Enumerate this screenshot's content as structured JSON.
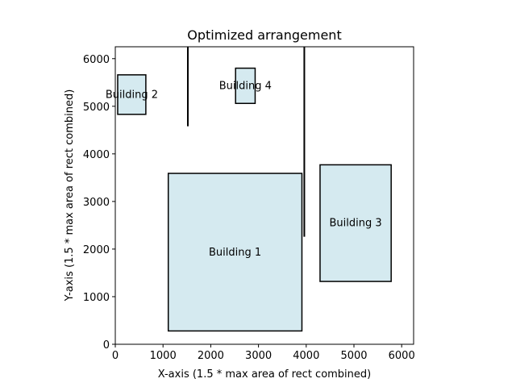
{
  "chart_data": {
    "type": "rectangles",
    "title": "Optimized arrangement",
    "xlabel": "X-axis (1.5 * max area of rect combined)",
    "ylabel": "Y-axis (1.5 * max area of rect combined)",
    "xlim": [
      0,
      6250
    ],
    "ylim": [
      0,
      6250
    ],
    "xticks": [
      0,
      1000,
      2000,
      3000,
      4000,
      5000,
      6000
    ],
    "yticks": [
      0,
      1000,
      2000,
      3000,
      4000,
      5000,
      6000
    ],
    "grid": false,
    "fill_color": "#d5eaf0",
    "edge_color": "#000000",
    "buildings": [
      {
        "label": "Building 1",
        "x0": 1110,
        "y0": 280,
        "x1": 3910,
        "y1": 3590
      },
      {
        "label": "Building 2",
        "x0": 50,
        "y0": 4830,
        "x1": 640,
        "y1": 5660
      },
      {
        "label": "Building 3",
        "x0": 4290,
        "y0": 1320,
        "x1": 5780,
        "y1": 3770
      },
      {
        "label": "Building 4",
        "x0": 2520,
        "y0": 5060,
        "x1": 2930,
        "y1": 5800
      }
    ],
    "lines": [
      {
        "x": 1520,
        "y0": 4580,
        "y1": 6250
      },
      {
        "x": 3960,
        "y0": 2260,
        "y1": 6250
      }
    ]
  }
}
